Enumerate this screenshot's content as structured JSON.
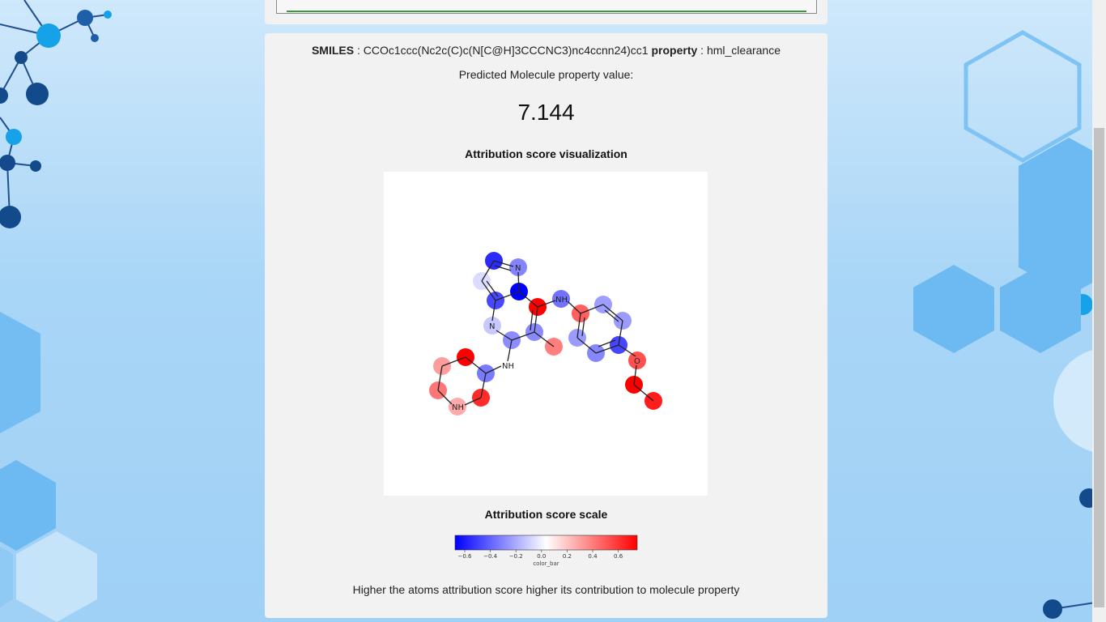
{
  "result": {
    "smiles_label": "SMILES",
    "smiles_sep": " : ",
    "smiles_value": "CCOc1ccc(Nc2c(C)c(N[C@H]3CCCNC3)nc4ccnn24)cc1",
    "property_label": "property",
    "property_sep": " : ",
    "property_value": "hml_clearance",
    "predicted_label": "Predicted Molecule property value:",
    "predicted_value": "7.144"
  },
  "visualization": {
    "title": "Attribution score visualization",
    "atom_labels": {
      "n_pyrazole": "N",
      "n_bridge": "N",
      "nh_amine_top": "NH",
      "nh_amine_left": "NH",
      "nh_ring": "NH",
      "o_ether": "O"
    }
  },
  "scale": {
    "title": "Attribution score scale",
    "ticks": [
      "−0.6",
      "−0.4",
      "−0.2",
      "0.0",
      "0.2",
      "0.4",
      "0.6"
    ],
    "caption": "color_bar",
    "colors": {
      "min": "#0000ff",
      "mid": "#ffffff",
      "max": "#ff0000"
    }
  },
  "footer": {
    "note": "Higher the atoms attribution score higher its contribution to molecule property"
  }
}
